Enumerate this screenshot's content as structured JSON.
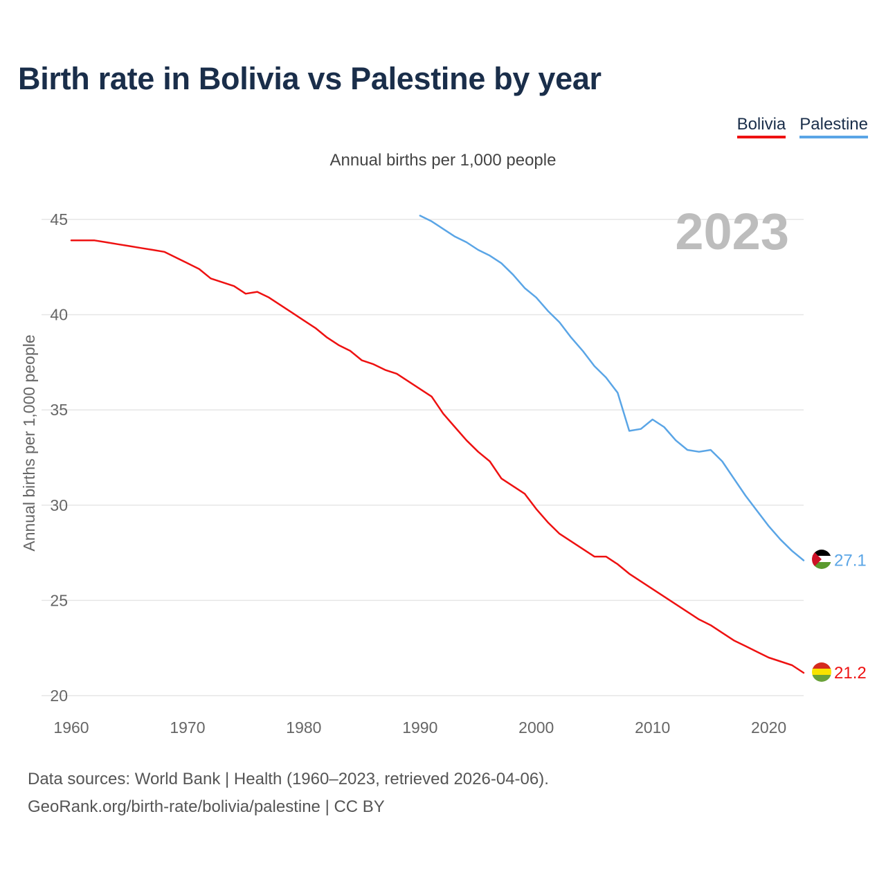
{
  "title": "Birth rate in Bolivia vs Palestine by year",
  "subtitle": "Annual births per 1,000 people",
  "legend": [
    "Bolivia",
    "Palestine"
  ],
  "year_watermark": "2023",
  "sources": {
    "line1": "Data sources: World Bank | Health (1960–2023, retrieved 2026-04-06).",
    "line2": "GeoRank.org/birth-rate/bolivia/palestine | CC BY"
  },
  "chart_data": {
    "type": "line",
    "title": "Birth rate in Bolivia vs Palestine by year",
    "xlabel": "",
    "ylabel": "Annual births per 1,000 people",
    "xlim": [
      1960,
      2023
    ],
    "ylim": [
      20,
      46
    ],
    "xticks": [
      1960,
      1970,
      1980,
      1990,
      2000,
      2010,
      2020
    ],
    "yticks": [
      20,
      25,
      30,
      35,
      40,
      45
    ],
    "grid": true,
    "legend_position": "top-right",
    "series": [
      {
        "name": "Bolivia",
        "color": "#ee1111",
        "end_label": "21.2",
        "x": [
          1960,
          1961,
          1962,
          1963,
          1964,
          1965,
          1966,
          1967,
          1968,
          1969,
          1970,
          1971,
          1972,
          1973,
          1974,
          1975,
          1976,
          1977,
          1978,
          1979,
          1980,
          1981,
          1982,
          1983,
          1984,
          1985,
          1986,
          1987,
          1988,
          1989,
          1990,
          1991,
          1992,
          1993,
          1994,
          1995,
          1996,
          1997,
          1998,
          1999,
          2000,
          2001,
          2002,
          2003,
          2004,
          2005,
          2006,
          2007,
          2008,
          2009,
          2010,
          2011,
          2012,
          2013,
          2014,
          2015,
          2016,
          2017,
          2018,
          2019,
          2020,
          2021,
          2022,
          2023
        ],
        "y": [
          43.9,
          43.9,
          43.9,
          43.8,
          43.7,
          43.6,
          43.5,
          43.4,
          43.3,
          43.0,
          42.7,
          42.4,
          41.9,
          41.7,
          41.5,
          41.1,
          41.2,
          40.9,
          40.5,
          40.1,
          39.7,
          39.3,
          38.8,
          38.4,
          38.1,
          37.6,
          37.4,
          37.1,
          36.9,
          36.5,
          36.1,
          35.7,
          34.8,
          34.1,
          33.4,
          32.8,
          32.3,
          31.4,
          31.0,
          30.6,
          29.8,
          29.1,
          28.5,
          28.1,
          27.7,
          27.3,
          27.3,
          26.9,
          26.4,
          26.0,
          25.6,
          25.2,
          24.8,
          24.4,
          24.0,
          23.7,
          23.3,
          22.9,
          22.6,
          22.3,
          22.0,
          21.8,
          21.6,
          21.2
        ]
      },
      {
        "name": "Palestine",
        "color": "#5aa5e6",
        "end_label": "27.1",
        "x": [
          1990,
          1991,
          1992,
          1993,
          1994,
          1995,
          1996,
          1997,
          1998,
          1999,
          2000,
          2001,
          2002,
          2003,
          2004,
          2005,
          2006,
          2007,
          2008,
          2009,
          2010,
          2011,
          2012,
          2013,
          2014,
          2015,
          2016,
          2017,
          2018,
          2019,
          2020,
          2021,
          2022,
          2023
        ],
        "y": [
          45.2,
          44.9,
          44.5,
          44.1,
          43.8,
          43.4,
          43.1,
          42.7,
          42.1,
          41.4,
          40.9,
          40.2,
          39.6,
          38.8,
          38.1,
          37.3,
          36.7,
          35.9,
          33.9,
          34.0,
          34.5,
          34.1,
          33.4,
          32.9,
          32.8,
          32.9,
          32.3,
          31.4,
          30.5,
          29.7,
          28.9,
          28.2,
          27.6,
          27.1
        ]
      }
    ]
  }
}
